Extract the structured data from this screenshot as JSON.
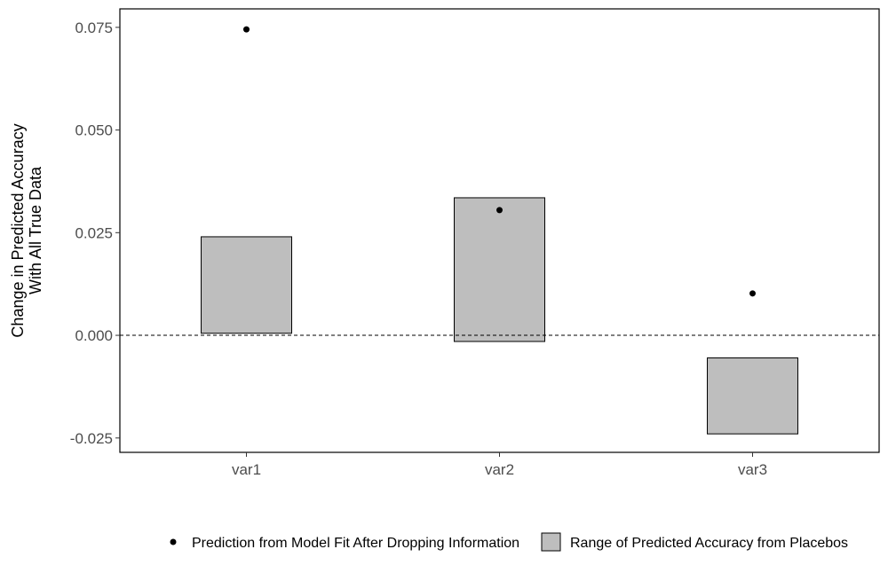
{
  "chart_data": {
    "type": "bar",
    "categories": [
      "var1",
      "var2",
      "var3"
    ],
    "ylabel_lines": [
      "Change in Predicted Accuracy",
      "With All True Data"
    ],
    "xlabel": "",
    "ylim": [
      -0.0285,
      0.0795
    ],
    "yticks": [
      -0.025,
      0.0,
      0.025,
      0.05,
      0.075
    ],
    "ytick_labels": [
      "-0.025",
      "0.000",
      "0.025",
      "0.050",
      "0.075"
    ],
    "reference_line": 0.0,
    "grid": false,
    "legend_position": "bottom",
    "series": [
      {
        "name": "Prediction from Model Fit After Dropping Information",
        "kind": "point",
        "values": [
          0.0745,
          0.0305,
          0.0102
        ]
      },
      {
        "name": "Range of Predicted Accuracy from Placebos",
        "kind": "range",
        "ranges": [
          [
            0.0005,
            0.024
          ],
          [
            -0.0015,
            0.0335
          ],
          [
            -0.024,
            -0.0055
          ]
        ]
      }
    ],
    "colors": {
      "box_fill": "#bebebe",
      "box_stroke": "#000000",
      "point": "#000000",
      "axis_text": "#4d4d4d"
    }
  }
}
